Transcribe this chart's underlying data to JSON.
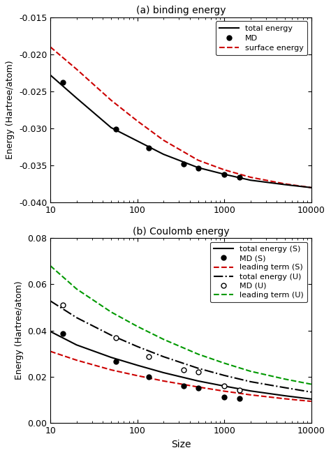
{
  "panel_a": {
    "title": "(a) binding energy",
    "ylabel": "Energy (Hartree/atom)",
    "xlim": [
      10,
      10000
    ],
    "ylim": [
      -0.04,
      -0.015
    ],
    "yticks": [
      -0.04,
      -0.035,
      -0.03,
      -0.025,
      -0.02,
      -0.015
    ],
    "total_x": [
      10,
      20,
      50,
      100,
      200,
      500,
      1000,
      2000,
      5000,
      10000
    ],
    "total_y": [
      -0.0228,
      -0.0259,
      -0.0299,
      -0.0317,
      -0.0335,
      -0.0353,
      -0.0362,
      -0.037,
      -0.0376,
      -0.038
    ],
    "surface_x": [
      10,
      20,
      50,
      100,
      200,
      500,
      1000,
      2000,
      5000,
      10000
    ],
    "surface_y": [
      -0.019,
      -0.022,
      -0.0262,
      -0.029,
      -0.0316,
      -0.0343,
      -0.0356,
      -0.0366,
      -0.0375,
      -0.038
    ],
    "md_x": [
      14,
      57,
      135,
      339,
      499,
      1000,
      1500
    ],
    "md_y": [
      -0.0238,
      -0.0301,
      -0.03265,
      -0.0348,
      -0.0354,
      -0.0362,
      -0.0366
    ],
    "legend": {
      "total_energy": "total energy",
      "md": "MD",
      "surface_energy": "surface energy"
    }
  },
  "panel_b": {
    "title": "(b) Coulomb energy",
    "ylabel": "Energy (Hartree/atom)",
    "xlabel": "Size",
    "xlim": [
      10,
      10000
    ],
    "ylim": [
      0.0,
      0.08
    ],
    "yticks": [
      0.0,
      0.02,
      0.04,
      0.06,
      0.08
    ],
    "total_S_x": [
      10,
      20,
      50,
      100,
      200,
      500,
      1000,
      2000,
      5000,
      10000
    ],
    "total_S_y": [
      0.0396,
      0.0338,
      0.0284,
      0.025,
      0.0218,
      0.0182,
      0.016,
      0.0139,
      0.0118,
      0.0104
    ],
    "total_U_x": [
      10,
      20,
      50,
      100,
      200,
      500,
      1000,
      2000,
      5000,
      10000
    ],
    "total_U_y": [
      0.0528,
      0.0456,
      0.038,
      0.0331,
      0.0287,
      0.0237,
      0.0206,
      0.0179,
      0.0153,
      0.0134
    ],
    "leading_S_x": [
      10,
      20,
      50,
      100,
      200,
      500,
      1000,
      2000,
      5000,
      10000
    ],
    "leading_S_y": [
      0.031,
      0.0272,
      0.023,
      0.0205,
      0.0182,
      0.0156,
      0.0138,
      0.0122,
      0.0105,
      0.0094
    ],
    "leading_U_x": [
      10,
      20,
      50,
      100,
      200,
      500,
      1000,
      2000,
      5000,
      10000
    ],
    "leading_U_y": [
      0.068,
      0.058,
      0.048,
      0.0418,
      0.0362,
      0.0298,
      0.0259,
      0.0224,
      0.019,
      0.0168
    ],
    "md_S_x": [
      14,
      57,
      135,
      339,
      499,
      1000,
      1500
    ],
    "md_S_y": [
      0.0386,
      0.0267,
      0.0201,
      0.016,
      0.0152,
      0.0112,
      0.0106
    ],
    "md_U_x": [
      14,
      57,
      135,
      339,
      499,
      1000,
      1500
    ],
    "md_U_y": [
      0.051,
      0.0368,
      0.0288,
      0.0229,
      0.022,
      0.0162,
      0.0144
    ],
    "legend": {
      "total_S": "total energy (S)",
      "md_S": "MD (S)",
      "leading_S": "leading term (S)",
      "total_U": "total energy (U)",
      "md_U": "MD (U)",
      "leading_U": "leading term (U)"
    }
  },
  "colors": {
    "black": "#000000",
    "red": "#cc0000",
    "green": "#009900"
  },
  "figsize": [
    4.74,
    6.52
  ],
  "dpi": 100
}
